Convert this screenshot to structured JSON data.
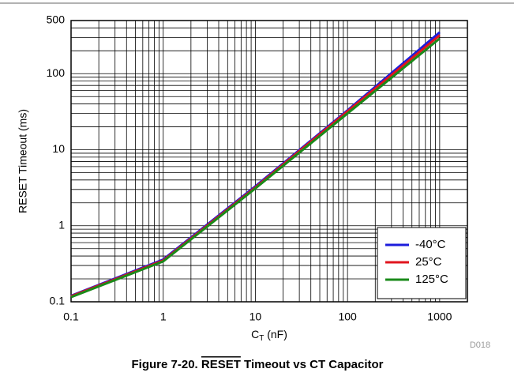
{
  "chart_data": {
    "type": "line",
    "title_parts": [
      "Figure 7-20. ",
      "RESET",
      " Timeout vs CT Capacitor"
    ],
    "xlabel_parts": [
      "C",
      "T",
      " (nF)"
    ],
    "ylabel": "RESET Timeout (ms)",
    "figure_id": "D018",
    "x": [
      0.1,
      1,
      10,
      100,
      1000
    ],
    "series": [
      {
        "name": "-40°C",
        "color": "#1c1cdc",
        "values": [
          0.12,
          0.36,
          3.3,
          33,
          350
        ]
      },
      {
        "name": "25°C",
        "color": "#e0141e",
        "values": [
          0.118,
          0.35,
          3.2,
          32,
          320
        ]
      },
      {
        "name": "125°C",
        "color": "#1a8a1a",
        "values": [
          0.115,
          0.34,
          3.1,
          30,
          290
        ]
      }
    ],
    "xscale": "log",
    "yscale": "log",
    "xlim": [
      0.1,
      2000
    ],
    "ylim": [
      0.1,
      500
    ],
    "xticks": [
      0.1,
      1,
      10,
      100,
      1000
    ],
    "yticks": [
      0.1,
      1,
      10,
      100,
      500
    ],
    "xminor_ticks": [
      0.2,
      0.3,
      0.4,
      0.5,
      0.6,
      0.7,
      0.8,
      0.9,
      2,
      3,
      4,
      5,
      6,
      7,
      8,
      9,
      20,
      30,
      40,
      50,
      60,
      70,
      80,
      90,
      200,
      300,
      400,
      500,
      600,
      700,
      800,
      900
    ],
    "yminor_ticks": [
      0.2,
      0.3,
      0.4,
      0.5,
      0.6,
      0.7,
      0.8,
      0.9,
      2,
      3,
      4,
      5,
      6,
      7,
      8,
      9,
      20,
      30,
      40,
      50,
      60,
      70,
      80,
      90,
      200,
      300,
      400
    ],
    "grid": true,
    "legend": "lower right"
  }
}
